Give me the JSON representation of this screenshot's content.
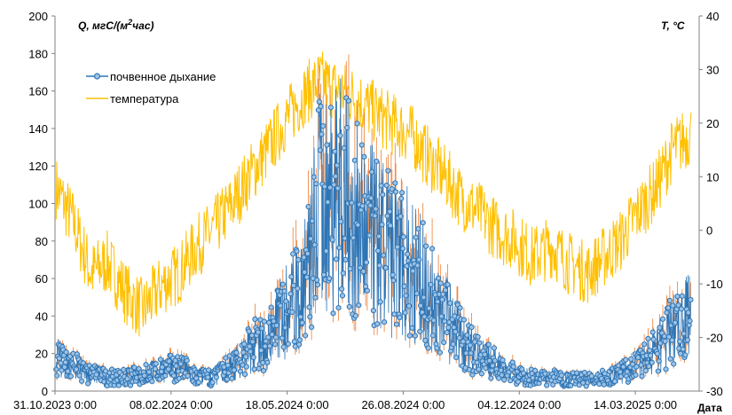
{
  "chart_data": {
    "type": "line",
    "left_axis": {
      "label": "Q, мгС/(м²час)",
      "ylim": [
        0,
        200
      ],
      "ticks": [
        0,
        20,
        40,
        60,
        80,
        100,
        120,
        140,
        160,
        180,
        200
      ]
    },
    "right_axis": {
      "label": "T, °C",
      "ylim": [
        -30,
        40
      ],
      "ticks": [
        -30,
        -20,
        -10,
        0,
        10,
        20,
        30,
        40
      ]
    },
    "x_axis": {
      "label": "Дата",
      "range": [
        "2023-10-31",
        "2025-05-08"
      ],
      "tick_labels": [
        "31.10.2023 0:00",
        "08.02.2024 0:00",
        "18.05.2024 0:00",
        "26.08.2024 0:00",
        "04.12.2024 0:00",
        "14.03.2025 0:00"
      ],
      "tick_dates": [
        "2023-10-31",
        "2024-02-08",
        "2024-05-18",
        "2024-08-26",
        "2024-12-04",
        "2025-03-14"
      ]
    },
    "legend": {
      "placement": "top-left"
    },
    "grid": false,
    "series": [
      {
        "name": "почвенное дыхание",
        "axis": "left",
        "color": "#2E75B6",
        "marker_fill": "#9DC3E6",
        "error_color": "#ED7D31",
        "x": [
          "2023-11-01",
          "2023-11-15",
          "2023-12-01",
          "2023-12-15",
          "2024-01-01",
          "2024-01-15",
          "2024-02-01",
          "2024-02-15",
          "2024-03-01",
          "2024-03-15",
          "2024-04-01",
          "2024-04-15",
          "2024-05-01",
          "2024-05-15",
          "2024-06-01",
          "2024-06-15",
          "2024-07-01",
          "2024-07-15",
          "2024-08-01",
          "2024-08-15",
          "2024-09-01",
          "2024-09-15",
          "2024-10-01",
          "2024-10-15",
          "2024-11-01",
          "2024-11-15",
          "2024-12-01",
          "2024-12-15",
          "2025-01-01",
          "2025-01-15",
          "2025-02-01",
          "2025-02-15",
          "2025-03-01",
          "2025-03-15",
          "2025-04-01",
          "2025-04-15",
          "2025-05-01"
        ],
        "y": [
          20,
          15,
          10,
          8,
          8,
          10,
          12,
          15,
          8,
          8,
          15,
          25,
          30,
          45,
          60,
          110,
          120,
          100,
          90,
          80,
          75,
          60,
          45,
          30,
          20,
          15,
          10,
          8,
          8,
          7,
          7,
          8,
          10,
          15,
          25,
          35,
          45
        ]
      },
      {
        "name": "температура",
        "axis": "right",
        "color": "#FFC000",
        "x": [
          "2023-11-01",
          "2023-11-15",
          "2023-12-01",
          "2023-12-15",
          "2024-01-01",
          "2024-01-15",
          "2024-02-01",
          "2024-02-15",
          "2024-03-01",
          "2024-03-15",
          "2024-04-01",
          "2024-04-15",
          "2024-05-01",
          "2024-05-15",
          "2024-06-01",
          "2024-06-15",
          "2024-07-01",
          "2024-07-15",
          "2024-08-01",
          "2024-08-15",
          "2024-09-01",
          "2024-09-15",
          "2024-10-01",
          "2024-10-15",
          "2024-11-01",
          "2024-11-15",
          "2024-12-01",
          "2024-12-15",
          "2025-01-01",
          "2025-01-15",
          "2025-02-01",
          "2025-02-15",
          "2025-03-01",
          "2025-03-15",
          "2025-04-01",
          "2025-04-15",
          "2025-05-01"
        ],
        "y": [
          8,
          2,
          -8,
          -6,
          -12,
          -15,
          -10,
          -8,
          -3,
          0,
          5,
          10,
          15,
          20,
          25,
          28,
          26,
          25,
          22,
          20,
          18,
          14,
          10,
          6,
          3,
          0,
          -2,
          -5,
          -3,
          -6,
          -8,
          -5,
          -2,
          3,
          8,
          15,
          18
        ]
      }
    ]
  }
}
